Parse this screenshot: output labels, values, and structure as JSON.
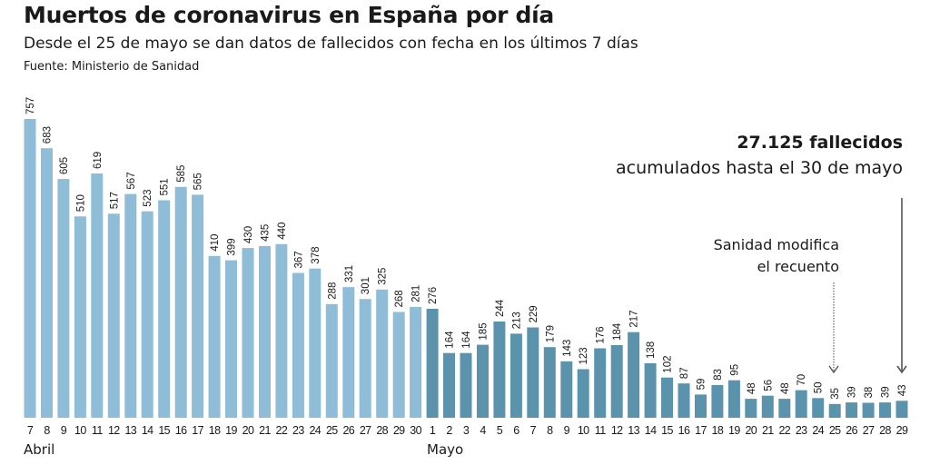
{
  "header": {
    "title": "Muertos de coronavirus en España por día",
    "subtitle": "Desde el 25 de mayo se dan datos de fallecidos con fecha en los últimos 7 días",
    "source": "Fuente: Ministerio de Sanidad"
  },
  "annotations": {
    "total_bold": "27.125 fallecidos",
    "total_sub": "acumulados hasta el 30 de mayo",
    "mod_line1": "Sanidad modifica",
    "mod_line2": "el recuento",
    "mod_marker_day": "25 de mayo",
    "total_marker_day": "29 de mayo"
  },
  "colors": {
    "april": "#8fbcd6",
    "may": "#5b93ad",
    "text": "#1a1a1a",
    "arrow": "#555555"
  },
  "chart_data": {
    "type": "bar",
    "title": "Muertos de coronavirus en España por día",
    "xlabel": "",
    "ylabel": "",
    "ylim": [
      0,
      757
    ],
    "grid": false,
    "months": [
      {
        "label": "Abril",
        "start_index": 0
      },
      {
        "label": "Mayo",
        "start_index": 24
      }
    ],
    "categories": [
      "7",
      "8",
      "9",
      "10",
      "11",
      "12",
      "13",
      "14",
      "15",
      "16",
      "17",
      "18",
      "19",
      "20",
      "21",
      "22",
      "23",
      "24",
      "25",
      "26",
      "27",
      "28",
      "29",
      "30",
      "1",
      "2",
      "3",
      "4",
      "5",
      "6",
      "7",
      "8",
      "9",
      "10",
      "11",
      "12",
      "13",
      "14",
      "15",
      "16",
      "17",
      "18",
      "19",
      "20",
      "21",
      "22",
      "23",
      "24",
      "25",
      "26",
      "27",
      "28",
      "29"
    ],
    "series": [
      {
        "name": "Fallecidos por día",
        "values": [
          757,
          683,
          605,
          510,
          619,
          517,
          567,
          523,
          551,
          585,
          565,
          410,
          399,
          430,
          435,
          440,
          367,
          378,
          288,
          331,
          301,
          325,
          268,
          281,
          276,
          164,
          164,
          185,
          244,
          213,
          229,
          179,
          143,
          123,
          176,
          184,
          217,
          138,
          102,
          87,
          59,
          83,
          95,
          48,
          56,
          48,
          70,
          50,
          35,
          39,
          38,
          39,
          43
        ]
      }
    ],
    "month_of_bar": [
      "april",
      "april",
      "april",
      "april",
      "april",
      "april",
      "april",
      "april",
      "april",
      "april",
      "april",
      "april",
      "april",
      "april",
      "april",
      "april",
      "april",
      "april",
      "april",
      "april",
      "april",
      "april",
      "april",
      "april",
      "may",
      "may",
      "may",
      "may",
      "may",
      "may",
      "may",
      "may",
      "may",
      "may",
      "may",
      "may",
      "may",
      "may",
      "may",
      "may",
      "may",
      "may",
      "may",
      "may",
      "may",
      "may",
      "may",
      "may",
      "may",
      "may",
      "may",
      "may",
      "may"
    ],
    "annotations": [
      {
        "text": "27.125 fallecidos acumulados hasta el 30 de mayo",
        "points_to": "29"
      },
      {
        "text": "Sanidad modifica el recuento",
        "points_to": "25",
        "style": "dotted-arrow"
      }
    ]
  }
}
